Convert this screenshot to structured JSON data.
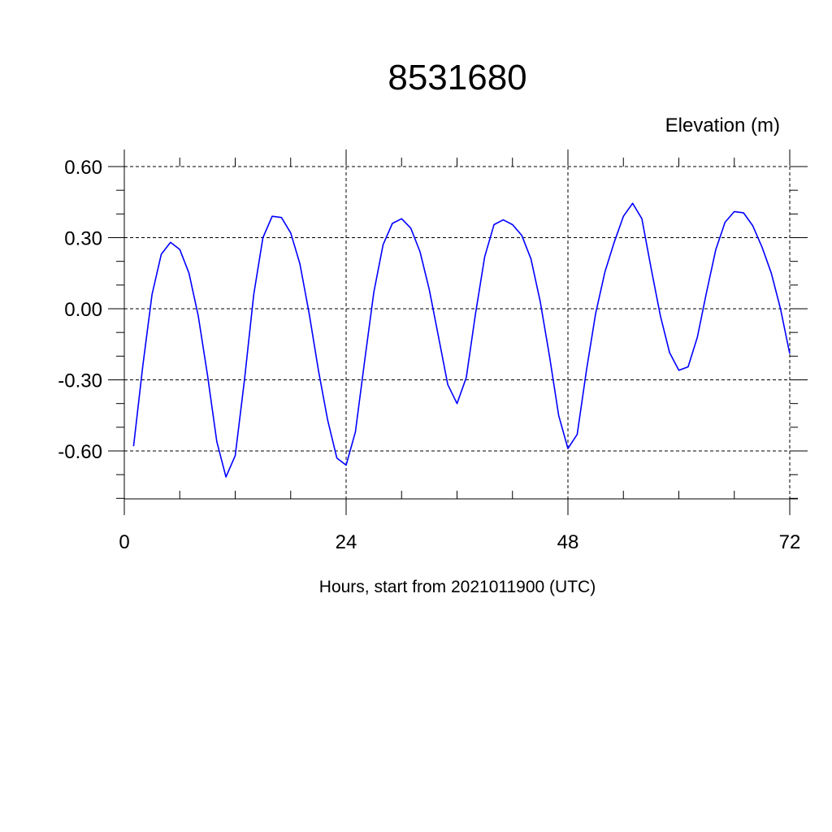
{
  "chart_data": {
    "type": "line",
    "title": "8531680",
    "ylabel": "Elevation (m)",
    "xlabel": "Hours, start from 2021011900 (UTC)",
    "xlim": [
      0,
      72
    ],
    "ylim": [
      -0.8,
      0.67
    ],
    "x_ticks": [
      0,
      24,
      48,
      72
    ],
    "x_tick_labels": [
      "0",
      "24",
      "48",
      "72"
    ],
    "y_ticks": [
      0.6,
      0.3,
      0.0,
      -0.3,
      -0.6
    ],
    "y_tick_labels": [
      "0.60",
      "0.30",
      "0.00",
      "-0.30",
      "-0.60"
    ],
    "grid": true,
    "series": [
      {
        "color": "#0000ff",
        "x": [
          1,
          2,
          3,
          4,
          5,
          6,
          7,
          8,
          9,
          10,
          11,
          12,
          13,
          14,
          15,
          16,
          17,
          18,
          19,
          20,
          21,
          22,
          23,
          24,
          25,
          26,
          27,
          28,
          29,
          30,
          31,
          32,
          33,
          34,
          35,
          36,
          37,
          38,
          39,
          40,
          41,
          42,
          43,
          44,
          45,
          46,
          47,
          48,
          49,
          50,
          51,
          52,
          53,
          54,
          55,
          56,
          57,
          58,
          59,
          60,
          61,
          62,
          63,
          64,
          65,
          66,
          67,
          68,
          69,
          70,
          71,
          72
        ],
        "y": [
          -0.58,
          -0.24,
          0.06,
          0.23,
          0.28,
          0.25,
          0.15,
          -0.03,
          -0.28,
          -0.56,
          -0.71,
          -0.62,
          -0.3,
          0.06,
          0.3,
          0.39,
          0.385,
          0.32,
          0.19,
          -0.02,
          -0.26,
          -0.47,
          -0.63,
          -0.66,
          -0.52,
          -0.22,
          0.07,
          0.27,
          0.36,
          0.38,
          0.34,
          0.24,
          0.08,
          -0.12,
          -0.32,
          -0.4,
          -0.29,
          -0.02,
          0.22,
          0.355,
          0.375,
          0.355,
          0.31,
          0.21,
          0.03,
          -0.2,
          -0.45,
          -0.59,
          -0.53,
          -0.26,
          -0.02,
          0.155,
          0.28,
          0.39,
          0.445,
          0.38,
          0.17,
          -0.03,
          -0.185,
          -0.26,
          -0.245,
          -0.12,
          0.07,
          0.25,
          0.365,
          0.41,
          0.405,
          0.35,
          0.26,
          0.15,
          0.0,
          -0.19
        ]
      }
    ]
  }
}
